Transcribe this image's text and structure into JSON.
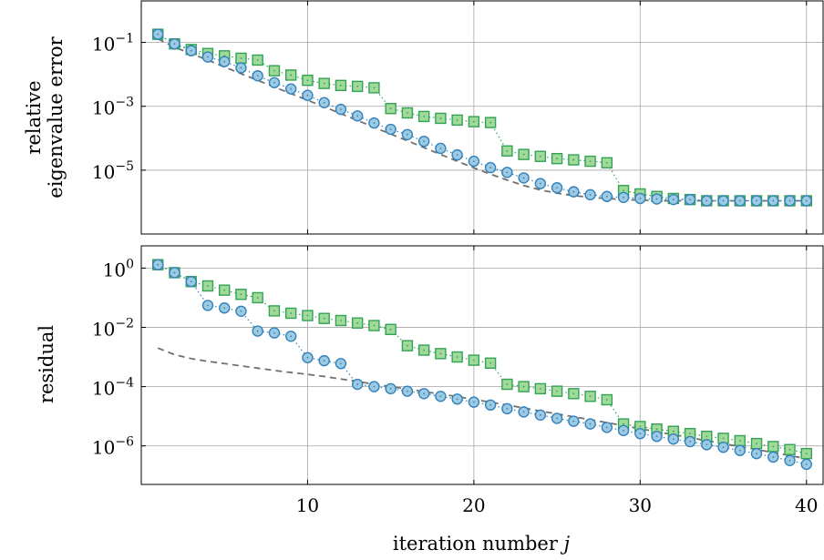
{
  "colors": {
    "circle_fill": "#9ecae1",
    "circle_stroke": "#3182bd",
    "square_fill": "#a1d99b",
    "square_stroke": "#31a354",
    "dashed_line": "#707070",
    "grid": "#b0b0b0"
  },
  "xlabel_main": "iteration number ",
  "xlabel_var": "j",
  "chart_data": [
    {
      "type": "line",
      "yscale": "log",
      "ylabel_lines": [
        "relative",
        "eigenvalue error"
      ],
      "xlim": [
        0,
        41
      ],
      "ylim_log10": [
        -7,
        0.3
      ],
      "xticks": [
        10,
        20,
        30,
        40
      ],
      "xtick_labels": [
        "10",
        "20",
        "30",
        "40"
      ],
      "ytick_exponents": [
        -1,
        -3,
        -5
      ],
      "ytick_labels": [
        "10",
        "10",
        "10"
      ],
      "ytick_sups": [
        "−1",
        "−3",
        "−5"
      ],
      "grid": true,
      "series": [
        {
          "marker": "circle",
          "style": "dotted",
          "x": [
            1,
            2,
            3,
            4,
            5,
            6,
            7,
            8,
            9,
            10,
            11,
            12,
            13,
            14,
            15,
            16,
            17,
            18,
            19,
            20,
            21,
            22,
            23,
            24,
            25,
            26,
            27,
            28,
            29,
            30,
            31,
            32,
            33,
            34,
            35,
            36,
            37,
            38,
            39,
            40
          ],
          "y": [
            0.18,
            0.09,
            0.055,
            0.035,
            0.025,
            0.016,
            0.009,
            0.0055,
            0.0035,
            0.0022,
            0.0013,
            0.0008,
            0.0005,
            0.0003,
            0.00019,
            0.00013,
            8e-05,
            4.8e-05,
            3e-05,
            1.9e-05,
            1.2e-05,
            8.5e-06,
            5.7e-06,
            3.8e-06,
            2.8e-06,
            2.1e-06,
            1.7e-06,
            1.5e-06,
            1.4e-06,
            1.3e-06,
            1.25e-06,
            1.2e-06,
            1.2e-06,
            1.1e-06,
            1.1e-06,
            1.1e-06,
            1.1e-06,
            1.1e-06,
            1.1e-06,
            1.1e-06
          ]
        },
        {
          "marker": "square",
          "style": "dotted",
          "x": [
            1,
            2,
            3,
            4,
            5,
            6,
            7,
            8,
            9,
            10,
            11,
            12,
            13,
            14,
            15,
            16,
            17,
            18,
            19,
            20,
            21,
            22,
            23,
            24,
            25,
            26,
            27,
            28,
            29,
            30,
            31,
            32,
            33,
            34,
            35,
            36,
            37,
            38,
            39,
            40
          ],
          "y": [
            0.18,
            0.09,
            0.06,
            0.045,
            0.038,
            0.032,
            0.028,
            0.013,
            0.0095,
            0.0065,
            0.0052,
            0.0045,
            0.0042,
            0.0038,
            0.00085,
            0.00062,
            0.00048,
            0.00042,
            0.00037,
            0.00033,
            0.00031,
            4e-05,
            3.1e-05,
            2.7e-05,
            2.3e-05,
            2.1e-05,
            1.9e-05,
            1.7e-05,
            2.3e-06,
            1.8e-06,
            1.5e-06,
            1.3e-06,
            1.2e-06,
            1.1e-06,
            1.1e-06,
            1.1e-06,
            1.1e-06,
            1.1e-06,
            1.1e-06,
            1.1e-06
          ]
        },
        {
          "marker": "none",
          "style": "dashed",
          "x": [
            1,
            2,
            3,
            4,
            5,
            6,
            7,
            8,
            9,
            10,
            11,
            12,
            13,
            14,
            15,
            16,
            17,
            18,
            19,
            20,
            21,
            22,
            23,
            24,
            25,
            26,
            27,
            28,
            29,
            30,
            31,
            32,
            33,
            34,
            35,
            36,
            37,
            38,
            39,
            40
          ],
          "y": [
            0.13,
            0.07,
            0.045,
            0.028,
            0.017,
            0.0105,
            0.0065,
            0.004,
            0.0025,
            0.00155,
            0.00095,
            0.00059,
            0.00036,
            0.00022,
            0.000135,
            8.3e-05,
            5.1e-05,
            3.1e-05,
            1.9e-05,
            1.18e-05,
            7.5e-06,
            4.9e-06,
            3.3e-06,
            2.4e-06,
            1.9e-06,
            1.6e-06,
            1.4e-06,
            1.3e-06,
            1.2e-06,
            1.15e-06,
            1.1e-06,
            1.1e-06,
            1.1e-06,
            1.1e-06,
            1.1e-06,
            1.1e-06,
            1.1e-06,
            1.1e-06,
            1.1e-06,
            1.1e-06
          ]
        }
      ]
    },
    {
      "type": "line",
      "yscale": "log",
      "ylabel_lines": [
        "residual"
      ],
      "xlim": [
        0,
        41
      ],
      "ylim_log10": [
        -7.3,
        0.75
      ],
      "xticks": [
        10,
        20,
        30,
        40
      ],
      "xtick_labels": [
        "10",
        "20",
        "30",
        "40"
      ],
      "ytick_exponents": [
        0,
        -2,
        -4,
        -6
      ],
      "ytick_labels": [
        "10",
        "10",
        "10",
        "10"
      ],
      "ytick_sups": [
        "0",
        "−2",
        "−4",
        "−6"
      ],
      "grid": true,
      "series": [
        {
          "marker": "circle",
          "style": "dotted",
          "x": [
            1,
            2,
            3,
            4,
            5,
            6,
            7,
            8,
            9,
            10,
            11,
            12,
            13,
            14,
            15,
            16,
            17,
            18,
            19,
            20,
            21,
            22,
            23,
            24,
            25,
            26,
            27,
            28,
            29,
            30,
            31,
            32,
            33,
            34,
            35,
            36,
            37,
            38,
            39,
            40
          ],
          "y": [
            1.3,
            0.7,
            0.35,
            0.055,
            0.045,
            0.035,
            0.0075,
            0.0065,
            0.005,
            0.00095,
            0.00075,
            0.0006,
            0.00012,
            0.0001,
            8.5e-05,
            7e-05,
            5.8e-05,
            4.7e-05,
            3.8e-05,
            3e-05,
            2.4e-05,
            1.8e-05,
            1.4e-05,
            1.1e-05,
            8.5e-06,
            6.8e-06,
            5.5e-06,
            4.2e-06,
            3.3e-06,
            2.6e-06,
            2.1e-06,
            1.7e-06,
            1.4e-06,
            1.1e-06,
            9e-07,
            7e-07,
            5.5e-07,
            4.2e-07,
            3.2e-07,
            2.4e-07
          ]
        },
        {
          "marker": "square",
          "style": "dotted",
          "x": [
            1,
            2,
            3,
            4,
            5,
            6,
            7,
            8,
            9,
            10,
            11,
            12,
            13,
            14,
            15,
            16,
            17,
            18,
            19,
            20,
            21,
            22,
            23,
            24,
            25,
            26,
            27,
            28,
            29,
            30,
            31,
            32,
            33,
            34,
            35,
            36,
            37,
            38,
            39,
            40
          ],
          "y": [
            1.3,
            0.7,
            0.35,
            0.25,
            0.18,
            0.13,
            0.1,
            0.036,
            0.03,
            0.025,
            0.02,
            0.017,
            0.014,
            0.0115,
            0.0085,
            0.0024,
            0.0017,
            0.0013,
            0.001,
            0.00078,
            0.00062,
            0.00012,
            0.0001,
            8.5e-05,
            7e-05,
            5.8e-05,
            4.7e-05,
            3.6e-05,
            5.5e-06,
            4.5e-06,
            3.7e-06,
            3.1e-06,
            2.6e-06,
            2.1e-06,
            1.8e-06,
            1.5e-06,
            1.2e-06,
            9.5e-07,
            7.5e-07,
            5.5e-07
          ]
        },
        {
          "marker": "none",
          "style": "dashed",
          "x": [
            1,
            2,
            3,
            4,
            5,
            6,
            7,
            8,
            9,
            10,
            11,
            12,
            13,
            14,
            15,
            16,
            17,
            18,
            19,
            20,
            21,
            22,
            23,
            24,
            25,
            26,
            27,
            28,
            29,
            30,
            31,
            32,
            33,
            34,
            35,
            36,
            37,
            38,
            39,
            40
          ],
          "y": [
            0.002,
            0.0012,
            0.00088,
            0.00071,
            0.0006,
            0.0005,
            0.00042,
            0.00035,
            0.0003,
            0.00026,
            0.00022,
            0.00018,
            0.00015,
            0.00012,
            0.0001,
            8.3e-05,
            6.8e-05,
            5.6e-05,
            4.6e-05,
            3.7e-05,
            3e-05,
            2.4e-05,
            1.9e-05,
            1.5e-05,
            1.2e-05,
            9.6e-06,
            7.7e-06,
            6.1e-06,
            4.8e-06,
            3.8e-06,
            3e-06,
            2.4e-06,
            1.9e-06,
            1.5e-06,
            1.2e-06,
            9.5e-07,
            7.5e-07,
            6e-07,
            4.7e-07,
            3.7e-07
          ]
        }
      ]
    }
  ]
}
